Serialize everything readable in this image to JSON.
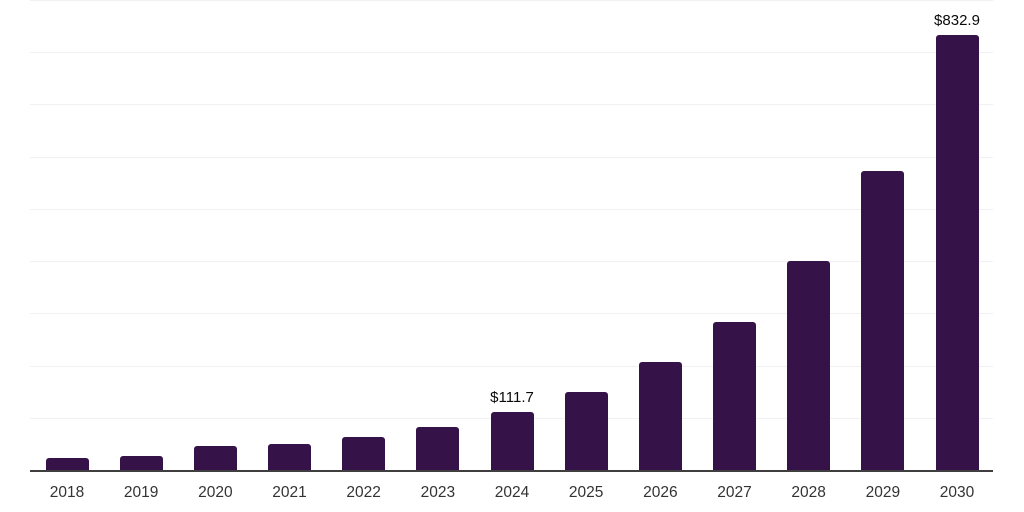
{
  "chart_data": {
    "type": "bar",
    "categories": [
      "2018",
      "2019",
      "2020",
      "2021",
      "2022",
      "2023",
      "2024",
      "2025",
      "2026",
      "2027",
      "2028",
      "2029",
      "2030"
    ],
    "values": [
      22.4,
      26.2,
      45.4,
      50.0,
      62.6,
      81.7,
      111.7,
      149.5,
      207.5,
      283.5,
      399.5,
      573.5,
      832.9
    ],
    "data_labels": [
      "",
      "",
      "",
      "",
      "",
      "",
      "$111.7",
      "",
      "",
      "",
      "",
      "",
      "$832.9"
    ],
    "title": "",
    "xlabel": "",
    "ylabel": "",
    "ylim": [
      0,
      900
    ],
    "gridline_step": 100,
    "grid": true,
    "legend": "none",
    "colors": {
      "bar": "#351348",
      "gridline": "#f1f1f4",
      "axis_line": "#3f3f3f",
      "tick_label": "#333333",
      "data_label": "#0a0a0a"
    }
  }
}
